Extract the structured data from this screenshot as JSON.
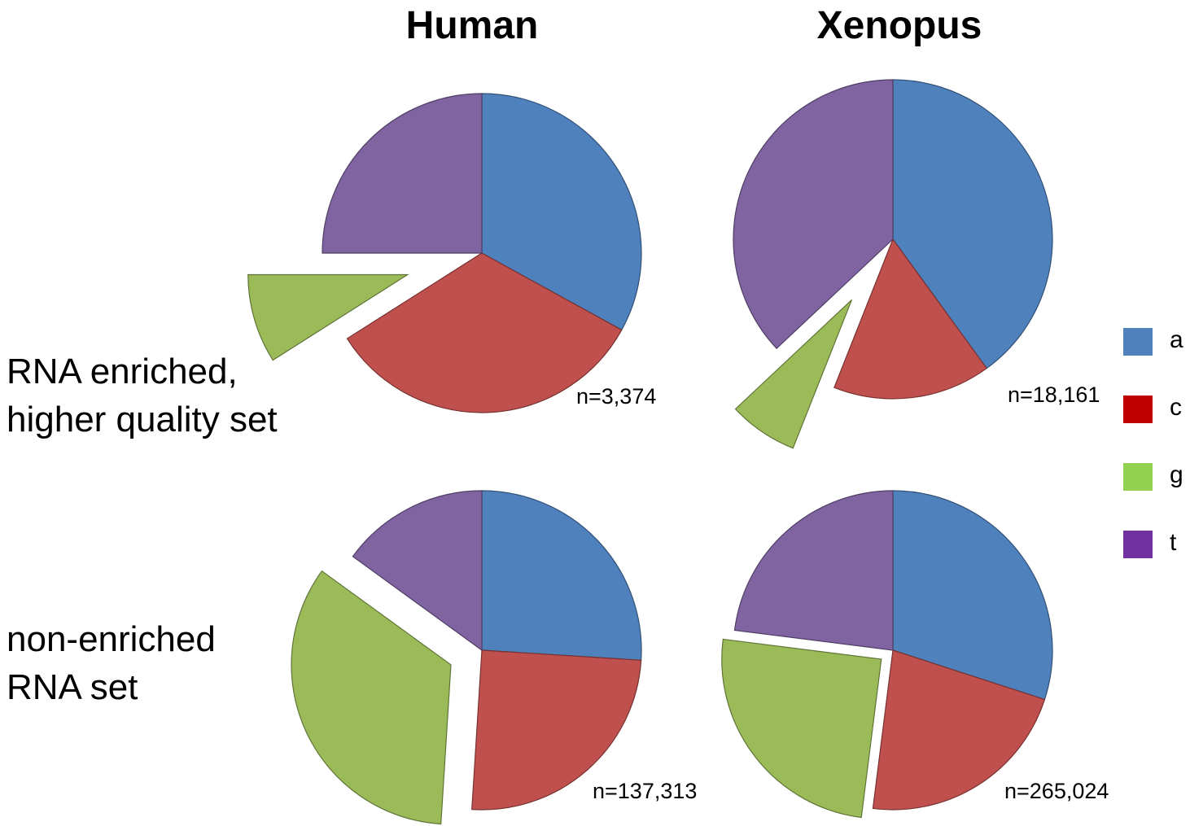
{
  "column_titles": [
    "Human",
    "Xenopus"
  ],
  "row_labels": [
    [
      "RNA enriched,",
      "higher quality set"
    ],
    [
      "non-enriched",
      "RNA set"
    ]
  ],
  "legend": [
    {
      "label": "a",
      "color": "#4f81bd"
    },
    {
      "label": "c",
      "color": "#c00000"
    },
    {
      "label": "g",
      "color": "#92d050"
    },
    {
      "label": "t",
      "color": "#7030a0"
    }
  ],
  "chart_data": [
    {
      "type": "pie",
      "title": "Human",
      "subset": "RNA enriched, higher quality set",
      "n_label": "n=3,374",
      "exploded": "g",
      "slice_colors": [
        "#4f81bd",
        "#c0504d",
        "#9bbb59",
        "#8064a2"
      ],
      "categories": [
        "a",
        "c",
        "g",
        "t"
      ],
      "values": [
        0.33,
        0.33,
        0.09,
        0.25
      ]
    },
    {
      "type": "pie",
      "title": "Xenopus",
      "subset": "RNA enriched, higher quality set",
      "n_label": "n=18,161",
      "exploded": "g",
      "slice_colors": [
        "#4f81bd",
        "#c0504d",
        "#9bbb59",
        "#8064a2"
      ],
      "categories": [
        "a",
        "c",
        "g",
        "t"
      ],
      "values": [
        0.4,
        0.16,
        0.07,
        0.37
      ]
    },
    {
      "type": "pie",
      "title": "Human",
      "subset": "non-enriched RNA set",
      "n_label": "n=137,313",
      "exploded": "g",
      "slice_colors": [
        "#4f81bd",
        "#c0504d",
        "#9bbb59",
        "#8064a2"
      ],
      "categories": [
        "a",
        "c",
        "g",
        "t"
      ],
      "values": [
        0.26,
        0.25,
        0.34,
        0.15
      ]
    },
    {
      "type": "pie",
      "title": "Xenopus",
      "subset": "non-enriched RNA set",
      "n_label": "n=265,024",
      "exploded": "g",
      "slice_colors": [
        "#4f81bd",
        "#c0504d",
        "#9bbb59",
        "#8064a2"
      ],
      "categories": [
        "a",
        "c",
        "g",
        "t"
      ],
      "values": [
        0.3,
        0.22,
        0.25,
        0.23
      ]
    }
  ]
}
